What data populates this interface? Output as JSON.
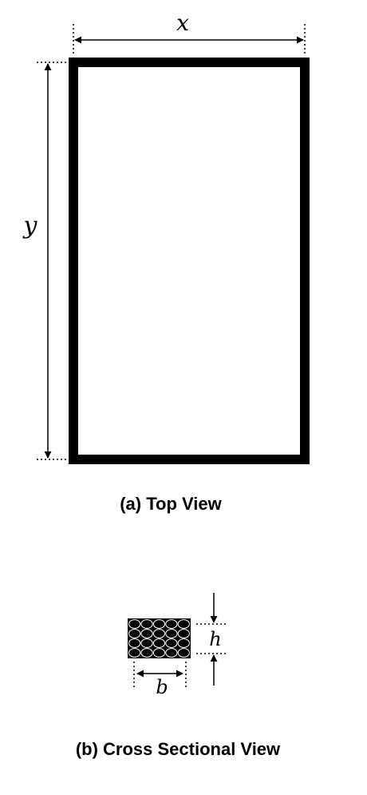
{
  "top_view": {
    "x_label": "x",
    "y_label": "y",
    "caption": "(a) Top View"
  },
  "cross_section": {
    "width_label": "b",
    "height_label": "h",
    "caption": "(b) Cross Sectional View",
    "strand_rows": 4,
    "strand_cols": 5
  },
  "colors": {
    "stroke": "#000000",
    "background": "#ffffff"
  }
}
